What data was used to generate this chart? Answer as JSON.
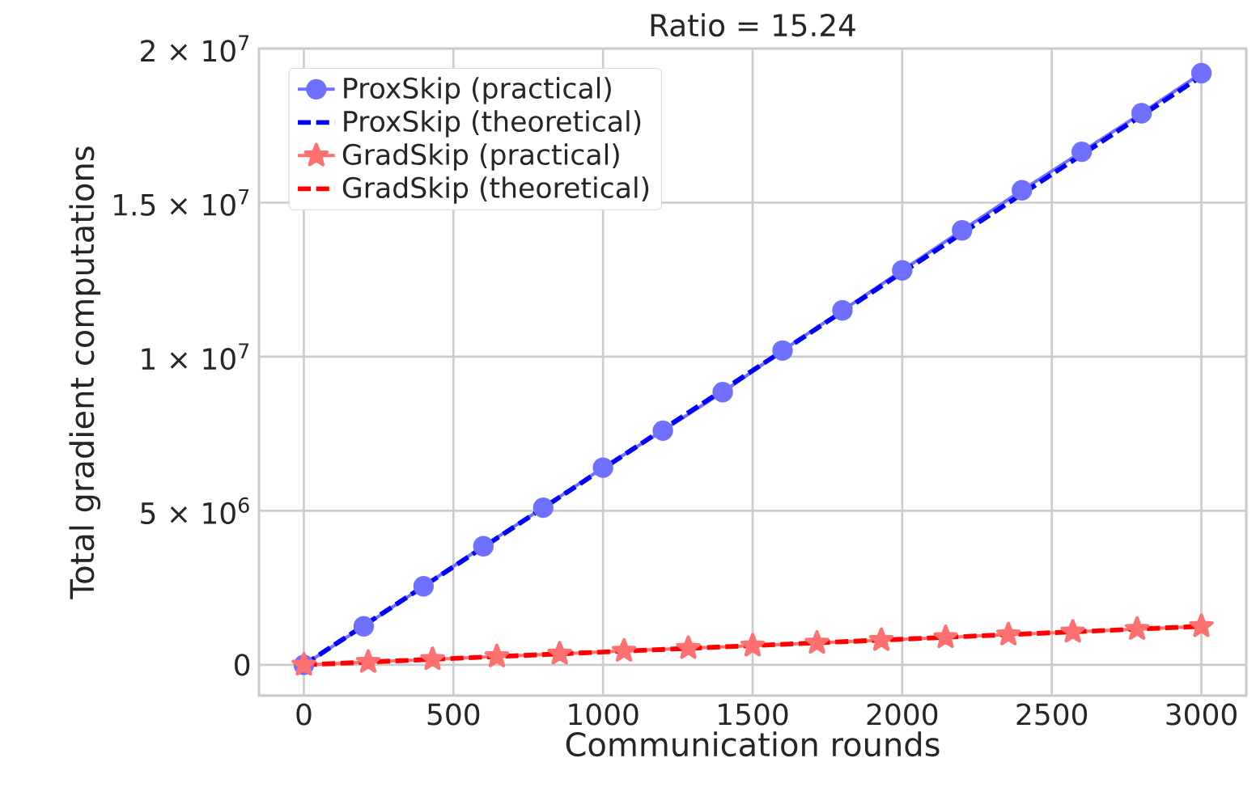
{
  "chart_data": {
    "type": "line",
    "title": "Ratio = 15.24",
    "xlabel": "Communication rounds",
    "ylabel": "Total gradient computations",
    "xlim": [
      -150,
      3150
    ],
    "ylim": [
      -1000000,
      20000000
    ],
    "xticks": [
      0,
      500,
      1000,
      1500,
      2000,
      2500,
      3000
    ],
    "yticks": [
      0,
      {
        "value": 5000000,
        "label": "5 × 10$^{6}$"
      },
      {
        "value": 10000000,
        "label": "1 × 10$^{7}$"
      },
      {
        "value": 15000000,
        "label": "1.5 × 10$^{7}$"
      },
      {
        "value": 20000000,
        "label": "2 × 10$^{7}$"
      }
    ],
    "grid": true,
    "legend": "top left",
    "series": [
      {
        "name": "ProxSkip (practical)",
        "color": "#7070ff",
        "marker": "circle",
        "line_style": "solid",
        "x": [
          0,
          200,
          400,
          600,
          800,
          1000,
          1200,
          1400,
          1600,
          1800,
          2000,
          2200,
          2400,
          2600,
          2800,
          3000
        ],
        "values": [
          0,
          1250000,
          2550000,
          3850000,
          5100000,
          6400000,
          7600000,
          8850000,
          10200000,
          11500000,
          12800000,
          14100000,
          15400000,
          16650000,
          17900000,
          19200000
        ]
      },
      {
        "name": "ProxSkip (theoretical)",
        "color": "#0000ff",
        "marker": "none",
        "line_style": "dashed",
        "x": [
          0,
          3000
        ],
        "values": [
          0,
          19100000
        ]
      },
      {
        "name": "GradSkip (practical)",
        "color": "#ff7070",
        "marker": "star",
        "line_style": "solid",
        "x": [
          0,
          215,
          430,
          645,
          855,
          1070,
          1285,
          1500,
          1715,
          1930,
          2145,
          2355,
          2570,
          2785,
          3000
        ],
        "values": [
          0,
          90000,
          180000,
          270000,
          360000,
          450000,
          540000,
          620000,
          710000,
          800000,
          890000,
          980000,
          1070000,
          1160000,
          1250000
        ]
      },
      {
        "name": "GradSkip (theoretical)",
        "color": "#ff0000",
        "marker": "none",
        "line_style": "dashed",
        "x": [
          0,
          3000
        ],
        "values": [
          0,
          1250000
        ]
      }
    ]
  }
}
